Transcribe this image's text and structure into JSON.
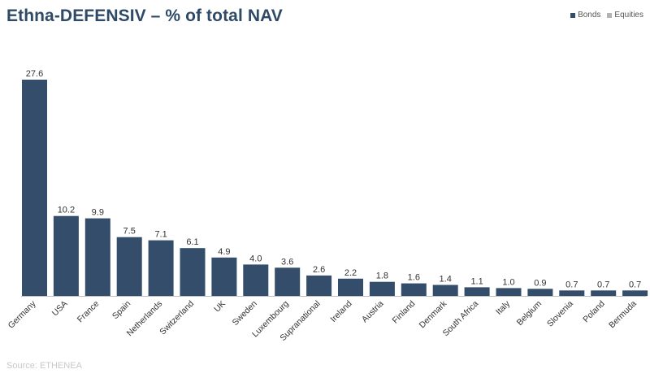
{
  "colors": {
    "bonds": "#334d6b",
    "equities": "#b3b3b3",
    "title": "#2f4a66",
    "labels": "#333333",
    "axis": "#bfbfbf"
  },
  "source": "Source: ETHENEA",
  "chart_data": {
    "type": "bar",
    "title": "Ethna-DEFENSIV – % of total NAV",
    "xlabel": "",
    "ylabel": "",
    "ylim": [
      0,
      27.6
    ],
    "grid": false,
    "legend_position": "top-right",
    "legend": [
      {
        "name": "Bonds",
        "color": "#334d6b"
      },
      {
        "name": "Equities",
        "color": "#b3b3b3"
      }
    ],
    "categories": [
      "Germany",
      "USA",
      "France",
      "Spain",
      "Netherlands",
      "Switzerland",
      "UK",
      "Sweden",
      "Luxembourg",
      "Supranational",
      "Ireland",
      "Austria",
      "Finland",
      "Denmark",
      "South Africa",
      "Italy",
      "Belgium",
      "Slovenia",
      "Poland",
      "Bermuda"
    ],
    "series": [
      {
        "name": "Bonds",
        "values": [
          27.6,
          10.2,
          9.9,
          7.5,
          7.1,
          6.1,
          4.9,
          4.0,
          3.6,
          2.6,
          2.2,
          1.8,
          1.6,
          1.4,
          1.1,
          1.0,
          0.9,
          0.7,
          0.7,
          0.7
        ]
      }
    ],
    "data_labels": [
      "27.6",
      "10.2",
      "9.9",
      "7.5",
      "7.1",
      "6.1",
      "4.9",
      "4.0",
      "3.6",
      "2.6",
      "2.2",
      "1.8",
      "1.6",
      "1.4",
      "1.1",
      "1.0",
      "0.9",
      "0.7",
      "0.7",
      "0.7"
    ]
  }
}
